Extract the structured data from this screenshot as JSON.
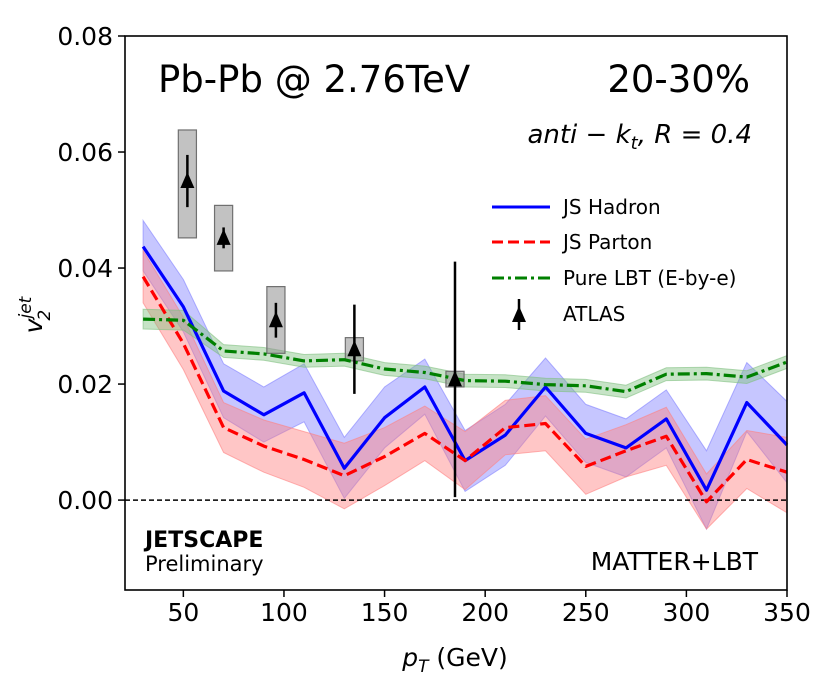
{
  "chart_data": {
    "type": "line",
    "title": "Pb-Pb @ 2.76TeV",
    "centrality": "20-30%",
    "subtitle": "anti-k_t, R = 0.4",
    "subtitle_parts": {
      "a": "anti",
      "minus": " − ",
      "k": "k",
      "sub": "t",
      "rest": ", R = 0.4"
    },
    "xlabel": "p_T (GeV)",
    "xlabel_parts": {
      "p": "p",
      "sub": "T",
      "rest": " (GeV)"
    },
    "ylabel": "v_2^jet",
    "ylabel_parts": {
      "v": "v",
      "sub": "2",
      "sup": "jet"
    },
    "xlim": [
      21,
      350
    ],
    "ylim": [
      -0.0155,
      0.08
    ],
    "xticks": [
      50,
      100,
      150,
      200,
      250,
      300,
      350
    ],
    "yticks": [
      0.0,
      0.02,
      0.04,
      0.06,
      0.08
    ],
    "ytick_labels": [
      "0.00",
      "0.02",
      "0.04",
      "0.06",
      "0.08"
    ],
    "xtick_labels": [
      "50",
      "100",
      "150",
      "200",
      "250",
      "300",
      "350"
    ],
    "hline": 0.0,
    "legend_position": "upper-right",
    "x": [
      30,
      50,
      70,
      90,
      110,
      130,
      150,
      170,
      190,
      210,
      230,
      250,
      270,
      290,
      310,
      330,
      350
    ],
    "series": [
      {
        "name": "JS Hadron",
        "color": "#0000ff",
        "style": "solid",
        "values": [
          0.0437,
          0.0333,
          0.0188,
          0.0147,
          0.0185,
          0.0055,
          0.0142,
          0.0195,
          0.0068,
          0.0112,
          0.0195,
          0.0115,
          0.009,
          0.014,
          0.0017,
          0.0168,
          0.0095
        ],
        "band_lower": [
          0.0395,
          0.029,
          0.0142,
          0.01,
          0.0135,
          0.0003,
          0.009,
          0.0148,
          0.0015,
          0.006,
          0.0145,
          0.0065,
          0.004,
          0.009,
          -0.005,
          0.0118,
          0.003
        ],
        "band_upper": [
          0.0482,
          0.038,
          0.0235,
          0.0195,
          0.0235,
          0.0108,
          0.0195,
          0.0243,
          0.012,
          0.0165,
          0.0245,
          0.0165,
          0.014,
          0.019,
          0.0085,
          0.0237,
          0.017
        ],
        "band_color": "#8080ff"
      },
      {
        "name": "JS Parton",
        "color": "#ff0000",
        "style": "dashed",
        "values": [
          0.0385,
          0.027,
          0.0125,
          0.0093,
          0.007,
          0.0042,
          0.0075,
          0.0115,
          0.0068,
          0.0125,
          0.0132,
          0.0058,
          0.0085,
          0.011,
          -0.0003,
          0.007,
          0.0048
        ],
        "band_lower": [
          0.034,
          0.0225,
          0.0082,
          0.0048,
          0.0022,
          -0.0015,
          0.0025,
          0.0068,
          0.0018,
          0.0078,
          0.0085,
          0.001,
          0.004,
          0.006,
          -0.005,
          0.002,
          -0.0022
        ],
        "band_upper": [
          0.043,
          0.0315,
          0.0168,
          0.0138,
          0.0118,
          0.0098,
          0.0125,
          0.0162,
          0.0118,
          0.0172,
          0.018,
          0.0105,
          0.013,
          0.016,
          0.0045,
          0.012,
          0.0108
        ],
        "band_color": "#ff8080"
      },
      {
        "name": "Pure LBT (E-by-e)",
        "color": "#008000",
        "style": "dashdot",
        "values": [
          0.0312,
          0.031,
          0.0257,
          0.0252,
          0.024,
          0.0242,
          0.0226,
          0.022,
          0.0206,
          0.0205,
          0.0199,
          0.0197,
          0.0187,
          0.0217,
          0.0218,
          0.0212,
          0.0238
        ],
        "band_lower": [
          0.0295,
          0.0293,
          0.0246,
          0.0241,
          0.0229,
          0.0231,
          0.0215,
          0.0209,
          0.0195,
          0.0194,
          0.0188,
          0.0186,
          0.0176,
          0.0206,
          0.0207,
          0.0201,
          0.0227
        ],
        "band_upper": [
          0.0329,
          0.0327,
          0.0268,
          0.0263,
          0.0251,
          0.0253,
          0.0237,
          0.0231,
          0.0217,
          0.0216,
          0.021,
          0.0208,
          0.0198,
          0.0228,
          0.0229,
          0.0223,
          0.0249
        ],
        "band_color": "#80c080"
      }
    ],
    "atlas": {
      "name": "ATLAS",
      "color": "#000000",
      "points": [
        {
          "x": 52,
          "y": 0.055,
          "stat_err": 0.0045,
          "sys_low": 0.0452,
          "sys_high": 0.0638,
          "box_half_width": 4.5
        },
        {
          "x": 70,
          "y": 0.0452,
          "stat_err": 0.0018,
          "sys_low": 0.0395,
          "sys_high": 0.0508,
          "box_half_width": 4.5
        },
        {
          "x": 96,
          "y": 0.031,
          "stat_err": 0.003,
          "sys_low": 0.0253,
          "sys_high": 0.0368,
          "box_half_width": 4.5
        },
        {
          "x": 135,
          "y": 0.026,
          "stat_err": 0.0077,
          "sys_low": 0.024,
          "sys_high": 0.028,
          "box_half_width": 4.5
        },
        {
          "x": 185,
          "y": 0.0208,
          "stat_err": 0.0203,
          "sys_low": 0.0195,
          "sys_high": 0.0222,
          "box_half_width": 4.5
        }
      ]
    },
    "annotations": {
      "collaboration": "JETSCAPE",
      "status": "Preliminary",
      "model": "MATTER+LBT"
    }
  }
}
